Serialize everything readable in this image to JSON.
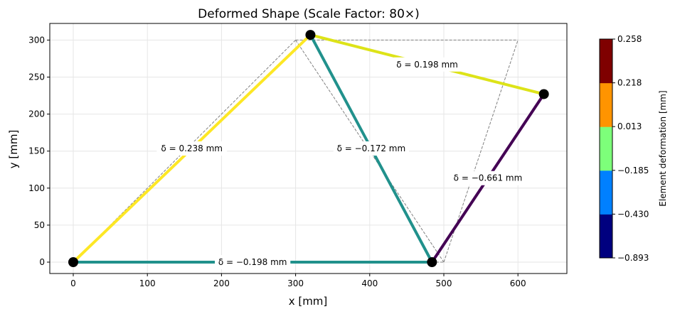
{
  "chart_data": {
    "type": "line",
    "title": "Deformed Shape (Scale Factor: 80×)",
    "xlabel": "x [mm]",
    "ylabel": "y [mm]",
    "xlim": [
      -30,
      668
    ],
    "ylim": [
      -15,
      322
    ],
    "xticks": [
      0,
      100,
      200,
      300,
      400,
      500,
      600
    ],
    "yticks": [
      0,
      50,
      100,
      150,
      200,
      250,
      300
    ],
    "grid": true,
    "original_nodes": [
      [
        0,
        0
      ],
      [
        300,
        300
      ],
      [
        600,
        300
      ],
      [
        500,
        0
      ]
    ],
    "deformed_nodes": [
      [
        0,
        0
      ],
      [
        320,
        307
      ],
      [
        635,
        227
      ],
      [
        484,
        0
      ]
    ],
    "elements": [
      {
        "nodes": [
          0,
          1
        ],
        "label": "δ = 0.238 mm",
        "color": "#fde725"
      },
      {
        "nodes": [
          0,
          3
        ],
        "label": "δ = −0.198 mm",
        "color": "#21918c"
      },
      {
        "nodes": [
          1,
          3
        ],
        "label": "δ = −0.172 mm",
        "color": "#21918c"
      },
      {
        "nodes": [
          1,
          2
        ],
        "label": "δ = 0.198 mm",
        "color": "#dde318"
      },
      {
        "nodes": [
          3,
          2
        ],
        "label": "δ = −0.661 mm",
        "color": "#440154"
      }
    ],
    "colorbar": {
      "label": "Element deformation [mm]",
      "ticks": [
        "−0.893",
        "−0.430",
        "−0.185",
        "0.013",
        "0.218",
        "0.258"
      ],
      "colors": [
        "#00007f",
        "#0080ff",
        "#7dff7a",
        "#ff9400",
        "#7f0000"
      ]
    }
  }
}
